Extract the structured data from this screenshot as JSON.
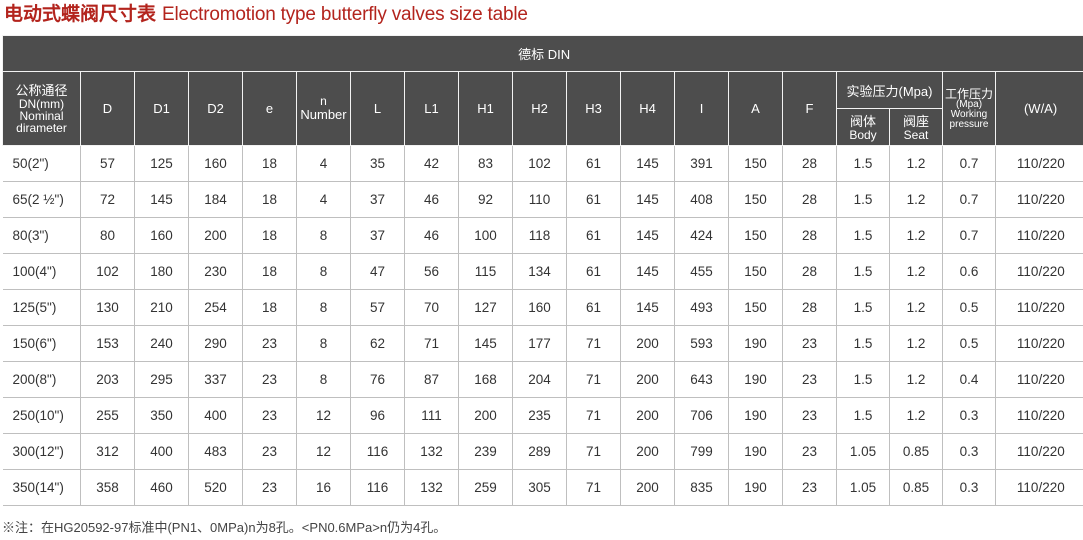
{
  "title": {
    "cn": "电动式蝶阀尺寸表",
    "en": "Electromotion type butterfly valves size table"
  },
  "header": {
    "standard": "德标 DIN",
    "dn": [
      "公称通径",
      "DN(mm)",
      "Nominal",
      "dirameter"
    ],
    "D": "D",
    "D1": "D1",
    "D2": "D2",
    "e": "e",
    "n": [
      "n",
      "Number"
    ],
    "L": "L",
    "L1": "L1",
    "H1": "H1",
    "H2": "H2",
    "H3": "H3",
    "H4": "H4",
    "I": "I",
    "A": "A",
    "F": "F",
    "test_pressure": "实验压力(Mpa)",
    "body": [
      "阀体",
      "Body"
    ],
    "seat": [
      "阀座",
      "Seat"
    ],
    "working": [
      "工作压力",
      "(Mpa)",
      "Working",
      "pressure"
    ],
    "wa": "(W/A)"
  },
  "rows": [
    [
      "50(2\")",
      "57",
      "125",
      "160",
      "18",
      "4",
      "35",
      "42",
      "83",
      "102",
      "61",
      "145",
      "391",
      "150",
      "28",
      "1.5",
      "1.2",
      "0.7",
      "110/220"
    ],
    [
      "65(2 ½\")",
      "72",
      "145",
      "184",
      "18",
      "4",
      "37",
      "46",
      "92",
      "110",
      "61",
      "145",
      "408",
      "150",
      "28",
      "1.5",
      "1.2",
      "0.7",
      "110/220"
    ],
    [
      "80(3\")",
      "80",
      "160",
      "200",
      "18",
      "8",
      "37",
      "46",
      "100",
      "118",
      "61",
      "145",
      "424",
      "150",
      "28",
      "1.5",
      "1.2",
      "0.7",
      "110/220"
    ],
    [
      "100(4\")",
      "102",
      "180",
      "230",
      "18",
      "8",
      "47",
      "56",
      "115",
      "134",
      "61",
      "145",
      "455",
      "150",
      "28",
      "1.5",
      "1.2",
      "0.6",
      "110/220"
    ],
    [
      "125(5\")",
      "130",
      "210",
      "254",
      "18",
      "8",
      "57",
      "70",
      "127",
      "160",
      "61",
      "145",
      "493",
      "150",
      "28",
      "1.5",
      "1.2",
      "0.5",
      "110/220"
    ],
    [
      "150(6\")",
      "153",
      "240",
      "290",
      "23",
      "8",
      "62",
      "71",
      "145",
      "177",
      "71",
      "200",
      "593",
      "190",
      "23",
      "1.5",
      "1.2",
      "0.5",
      "110/220"
    ],
    [
      "200(8\")",
      "203",
      "295",
      "337",
      "23",
      "8",
      "76",
      "87",
      "168",
      "204",
      "71",
      "200",
      "643",
      "190",
      "23",
      "1.5",
      "1.2",
      "0.4",
      "110/220"
    ],
    [
      "250(10\")",
      "255",
      "350",
      "400",
      "23",
      "12",
      "96",
      "111",
      "200",
      "235",
      "71",
      "200",
      "706",
      "190",
      "23",
      "1.5",
      "1.2",
      "0.3",
      "110/220"
    ],
    [
      "300(12\")",
      "312",
      "400",
      "483",
      "23",
      "12",
      "116",
      "132",
      "239",
      "289",
      "71",
      "200",
      "799",
      "190",
      "23",
      "1.05",
      "0.85",
      "0.3",
      "110/220"
    ],
    [
      "350(14\")",
      "358",
      "460",
      "520",
      "23",
      "16",
      "116",
      "132",
      "259",
      "305",
      "71",
      "200",
      "835",
      "190",
      "23",
      "1.05",
      "0.85",
      "0.3",
      "110/220"
    ]
  ],
  "note": "※注：在HG20592-97标准中(PN1、0MPa)n为8孔。<PN0.6MPa>n仍为4孔。"
}
